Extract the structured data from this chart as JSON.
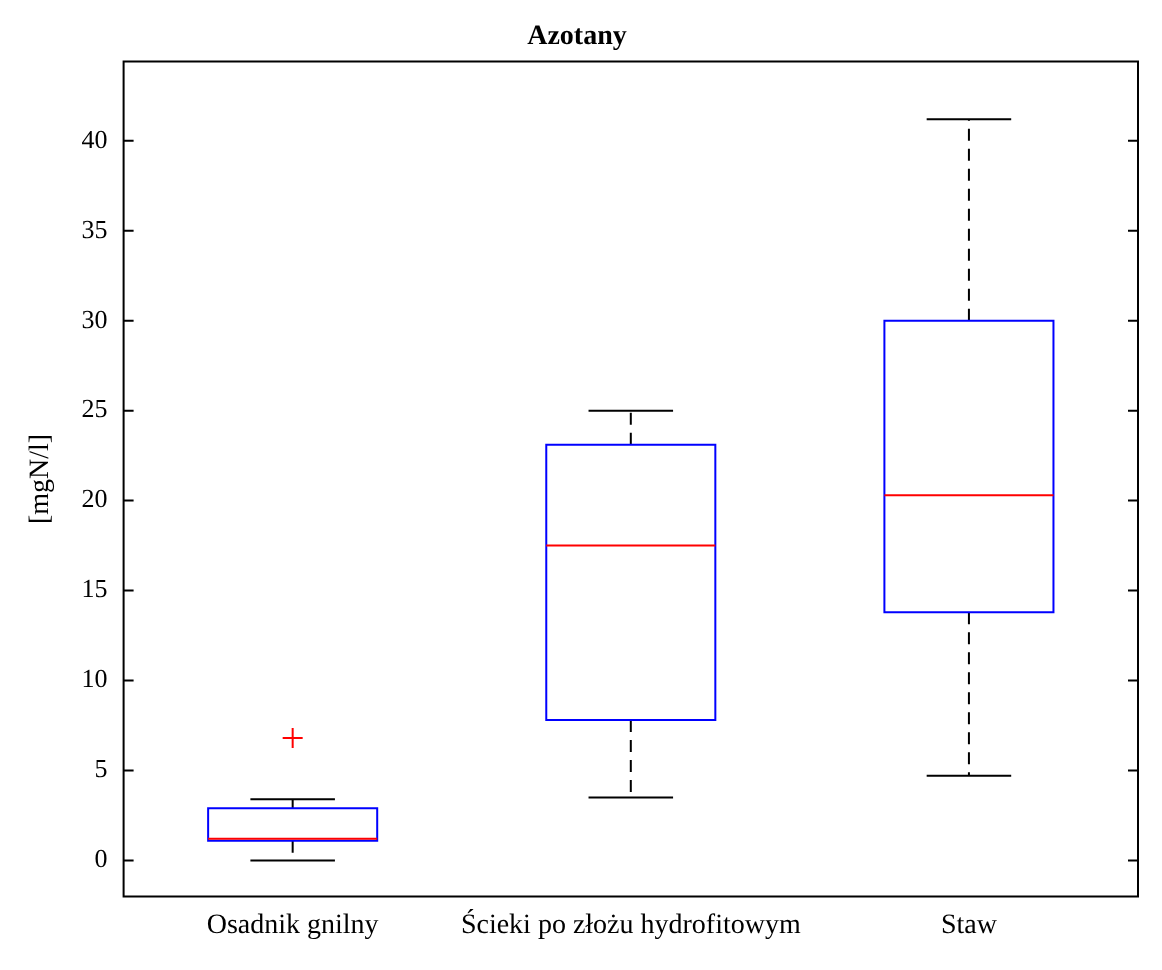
{
  "chart_data": {
    "type": "box",
    "title": "Azotany",
    "ylabel": "[mgN/l]",
    "categories": [
      "Osadnik gnilny",
      "Ścieki po złożu hydrofitowym",
      "Staw"
    ],
    "color": "#0000ff",
    "boxes": [
      {
        "low": 0,
        "q1": 1.1,
        "median": 1.2,
        "q3": 2.9,
        "high": 3.4,
        "outliers": [
          6.8
        ]
      },
      {
        "low": 3.5,
        "q1": 7.8,
        "median": 17.5,
        "q3": 23.1,
        "high": 25.0
      },
      {
        "low": 4.7,
        "q1": 13.8,
        "median": 20.3,
        "q3": 30.0,
        "high": 41.2
      }
    ],
    "ylim": [
      -2,
      44.4
    ],
    "yticks": [
      0,
      5,
      10,
      15,
      20,
      25,
      30,
      35,
      40
    ],
    "grid": false,
    "legend": false
  }
}
